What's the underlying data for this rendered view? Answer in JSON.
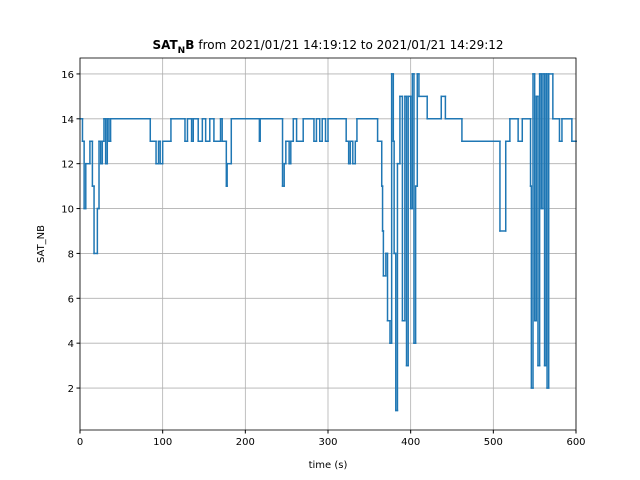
{
  "chart_data": {
    "type": "step",
    "title_parts": [
      "SAT",
      "N",
      "B",
      "from 2021/01/21 14:19:12 to 2021/01/21 14:29:12"
    ],
    "xlabel": "time (s)",
    "ylabel": "SAT_NB",
    "x": [
      0,
      3,
      5,
      7,
      12,
      15,
      17,
      21,
      23,
      25,
      27,
      29,
      31,
      33,
      35,
      37,
      85,
      92,
      95,
      97,
      100,
      110,
      127,
      130,
      135,
      137,
      143,
      148,
      152,
      157,
      162,
      170,
      172,
      177,
      178,
      183,
      217,
      218,
      245,
      247,
      249,
      253,
      255,
      258,
      262,
      270,
      283,
      286,
      290,
      293,
      297,
      300,
      322,
      325,
      327,
      330,
      333,
      335,
      360,
      365,
      366,
      367,
      370,
      372,
      375,
      377,
      379,
      380,
      382,
      384,
      387,
      390,
      393,
      395,
      397,
      400,
      402,
      404,
      406,
      408,
      410,
      420,
      437,
      442,
      462,
      508,
      515,
      520,
      530,
      535,
      545,
      546,
      548,
      550,
      552,
      554,
      556,
      558,
      560,
      562,
      564,
      565,
      567,
      572,
      580,
      583,
      595,
      600
    ],
    "series": [
      {
        "name": "SAT_NB",
        "color": "#1f77b4",
        "values": [
          14,
          13,
          10,
          12,
          13,
          11,
          8,
          10,
          13,
          12,
          13,
          14,
          12,
          14,
          13,
          14,
          13,
          12,
          13,
          12,
          13,
          14,
          13,
          14,
          13,
          14,
          13,
          14,
          13,
          14,
          13,
          14,
          13,
          11,
          12,
          14,
          13,
          14,
          11,
          12,
          13,
          12,
          13,
          14,
          13,
          14,
          13,
          14,
          13,
          14,
          13,
          14,
          13,
          12,
          13,
          12,
          13,
          14,
          13,
          11,
          9,
          7,
          8,
          5,
          4,
          16,
          13,
          8,
          1,
          12,
          15,
          5,
          15,
          3,
          15,
          10,
          16,
          4,
          11,
          16,
          15,
          14,
          15,
          14,
          13,
          9,
          13,
          14,
          13,
          14,
          11,
          2,
          16,
          5,
          15,
          3,
          16,
          10,
          16,
          3,
          16,
          2,
          16,
          14,
          13,
          14,
          13,
          13
        ]
      }
    ],
    "xlim": [
      0,
      600
    ],
    "ylim": [
      0.13,
      16.71
    ],
    "xticks": [
      0,
      100,
      200,
      300,
      400,
      500,
      600
    ],
    "yticks": [
      2,
      4,
      6,
      8,
      10,
      12,
      14,
      16
    ],
    "grid": true
  }
}
